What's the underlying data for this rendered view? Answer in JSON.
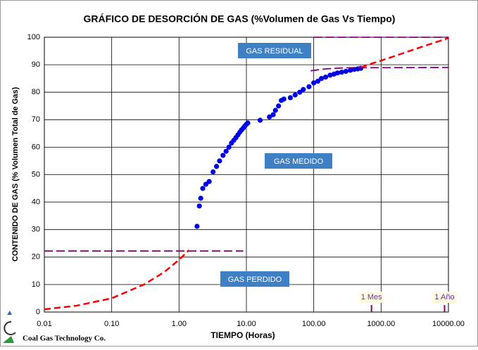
{
  "chart_data": {
    "type": "log-line",
    "title": "GRÁFICO DE DESORCIÓN DE GAS (%Volumen de Gas Vs Tiempo)",
    "xlabel": "TIEMPO (Horas)",
    "ylabel": "CONTENIDO DE GAS (% Volumen Total de Gas)",
    "xscale": "log",
    "xlim": [
      0.01,
      10000
    ],
    "ylim": [
      0,
      100
    ],
    "xticks": [
      0.01,
      {
        "value": 0.1,
        "label": "0.10"
      },
      {
        "value": 1,
        "label": "1.00"
      },
      {
        "value": 10,
        "label": "10.00"
      },
      {
        "value": 100,
        "label": "100.00"
      },
      {
        "value": 1000,
        "label": "1000.00"
      },
      {
        "value": 10000,
        "label": "10000.00"
      }
    ],
    "yticks": [
      0,
      10,
      20,
      30,
      40,
      50,
      60,
      70,
      80,
      90,
      100
    ],
    "grid": true,
    "series": [
      {
        "kind": "scatter",
        "color": "#0000e6",
        "x": [
          1.85,
          2.0,
          2.1,
          2.25,
          2.5,
          2.8,
          3.2,
          3.6,
          4.0,
          4.5,
          5.0,
          5.5,
          6.0,
          6.5,
          7.0,
          7.5,
          8.0,
          8.5,
          9.0,
          9.5,
          10.0,
          10.5,
          16,
          22,
          25,
          27,
          30,
          33,
          36,
          45,
          53,
          62,
          70,
          85,
          100,
          115,
          130,
          150,
          175,
          200,
          225,
          260,
          300,
          350,
          400,
          450,
          500
        ],
        "values": [
          31.2,
          38.6,
          41.4,
          45,
          46.5,
          47.5,
          51,
          53,
          55,
          57,
          58.5,
          60,
          61.5,
          62.5,
          63.5,
          64.5,
          65.5,
          66.3,
          67,
          67.7,
          68.3,
          68.8,
          69.8,
          71,
          71.8,
          73.4,
          75,
          77,
          77.5,
          78,
          79,
          80,
          81,
          82,
          83.4,
          84,
          85,
          85.5,
          86.2,
          86.6,
          87,
          87.3,
          87.6,
          88,
          88.3,
          88.5,
          88.7
        ]
      },
      {
        "kind": "dashed-line",
        "color": "#ff0000",
        "x": [
          0.01,
          0.03,
          0.1,
          0.3,
          0.6,
          1.0,
          1.4
        ],
        "values": [
          1,
          2.3,
          5,
          10,
          14.5,
          19,
          22.5
        ]
      },
      {
        "kind": "dashed-line",
        "color": "#ff0000",
        "x": [
          500,
          700,
          1000,
          2000,
          4000,
          10000
        ],
        "values": [
          89,
          90.3,
          91.5,
          94,
          96.5,
          99.7
        ]
      },
      {
        "kind": "dashed-line",
        "color": "#800080",
        "x": [
          0.01,
          9
        ],
        "values": [
          22.2,
          22.2
        ]
      },
      {
        "kind": "dashed-line",
        "color": "#800080",
        "x": [
          90,
          150,
          300,
          10000
        ],
        "values": [
          87.8,
          88.5,
          88.9,
          89
        ]
      },
      {
        "kind": "dashed-line",
        "color": "#800080",
        "x": [
          100,
          10000
        ],
        "values": [
          100,
          100
        ]
      }
    ],
    "annotations": [
      "GAS RESIDUAL",
      "GAS MEDIDO",
      "GAS PERDIDO"
    ],
    "markers": [
      {
        "label": "1 Mes",
        "x": 720
      },
      {
        "label": "1 Año",
        "x": 8760
      }
    ],
    "logo_text": "Coal Gas Technology Co."
  }
}
